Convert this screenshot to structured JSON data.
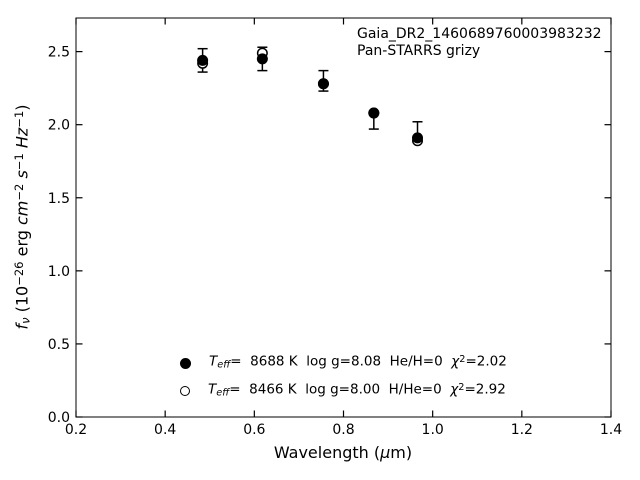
{
  "figure": {
    "background_color": "#ffffff",
    "foreground_color": "#000000"
  },
  "chart_data": {
    "type": "scatter",
    "title": "Gaia_DR2_1460689760003983232",
    "subtitle": "Pan-STARRS grizy",
    "xlabel_segments": [
      {
        "text": "Wavelength (",
        "style": ""
      },
      {
        "text": "μ",
        "style": "i"
      },
      {
        "text": "m)",
        "style": ""
      }
    ],
    "ylabel_segments": [
      {
        "text": "f",
        "style": "i"
      },
      {
        "text": "ν",
        "style": "i sub"
      },
      {
        "text": " (10",
        "style": ""
      },
      {
        "text": "−26",
        "style": "sup"
      },
      {
        "text": " erg ",
        "style": ""
      },
      {
        "text": "cm",
        "style": "i"
      },
      {
        "text": "−2",
        "style": "sup"
      },
      {
        "text": " ",
        "style": ""
      },
      {
        "text": "s",
        "style": "i"
      },
      {
        "text": "−1",
        "style": "sup"
      },
      {
        "text": " ",
        "style": ""
      },
      {
        "text": "Hz",
        "style": "i"
      },
      {
        "text": "−1",
        "style": "sup"
      },
      {
        "text": ")",
        "style": ""
      }
    ],
    "xlim": [
      0.2,
      1.4
    ],
    "ylim": [
      0.0,
      2.73
    ],
    "grid": false,
    "xticks": {
      "values": [
        0.2,
        0.4,
        0.6,
        0.8,
        1.0,
        1.2,
        1.4
      ],
      "labels": [
        "0.2",
        "0.4",
        "0.6",
        "0.8",
        "1.0",
        "1.2",
        "1.4"
      ]
    },
    "yticks": {
      "values": [
        0.0,
        0.5,
        1.0,
        1.5,
        2.0,
        2.5
      ],
      "labels": [
        "0.0",
        "0.5",
        "1.0",
        "1.5",
        "2.0",
        "2.5"
      ]
    },
    "x": [
      0.484,
      0.618,
      0.755,
      0.868,
      0.966
    ],
    "series": [
      {
        "name": "observed-photometry",
        "marker": "error-bar",
        "y": [
          2.44,
          2.45,
          2.3,
          2.03,
          1.96
        ],
        "yerr": [
          0.08,
          0.08,
          0.07,
          0.06,
          0.06
        ]
      },
      {
        "name": "model-teff-8688",
        "marker": "filled-circle",
        "y": [
          2.44,
          2.45,
          2.28,
          2.08,
          1.91
        ]
      },
      {
        "name": "model-teff-8466",
        "marker": "open-circle",
        "y": [
          2.42,
          2.49,
          2.28,
          2.08,
          1.89
        ]
      }
    ],
    "legend": {
      "position": "lower-left-inside",
      "rows": [
        {
          "marker": "filled-circle",
          "segments": [
            {
              "text": "T",
              "style": "i"
            },
            {
              "text": "eff",
              "style": "i sub"
            },
            {
              "text": "=  8688 K  log g=8.08  He/H=0  ",
              "style": ""
            },
            {
              "text": "χ",
              "style": "i"
            },
            {
              "text": "2",
              "style": "sup"
            },
            {
              "text": "=2.02",
              "style": ""
            }
          ]
        },
        {
          "marker": "open-circle",
          "segments": [
            {
              "text": "T",
              "style": "i"
            },
            {
              "text": "eff",
              "style": "i sub"
            },
            {
              "text": "=  8466 K  log g=8.00  H/He=0  ",
              "style": ""
            },
            {
              "text": "χ",
              "style": "i"
            },
            {
              "text": "2",
              "style": "sup"
            },
            {
              "text": "=2.92",
              "style": ""
            }
          ]
        }
      ]
    }
  }
}
